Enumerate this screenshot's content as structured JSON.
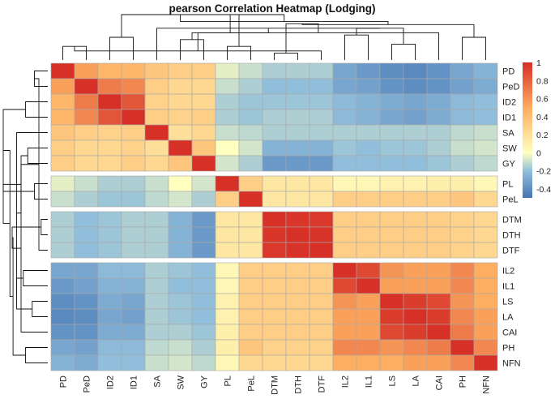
{
  "chart_data": {
    "type": "heatmap",
    "title": "pearson Correlation Heatmap (Lodging)",
    "xlabel": "",
    "ylabel": "",
    "labels": [
      "PD",
      "PeD",
      "ID2",
      "ID1",
      "SA",
      "SW",
      "GY",
      "PL",
      "PeL",
      "DTM",
      "DTH",
      "DTF",
      "IL2",
      "IL1",
      "LS",
      "LA",
      "CAI",
      "PH",
      "NFN"
    ],
    "groups": [
      [
        0,
        6
      ],
      [
        7,
        8
      ],
      [
        9,
        11
      ],
      [
        12,
        18
      ]
    ],
    "colorbar": {
      "range": [
        -0.5,
        1
      ],
      "ticks": [
        "1",
        "0.8",
        "0.6",
        "0.4",
        "0.2",
        "0",
        "-0.2",
        "-0.4"
      ],
      "tick_values": [
        1,
        0.8,
        0.6,
        0.4,
        0.2,
        0,
        -0.2,
        -0.4
      ]
    },
    "colors": {
      "low": "#4575b4",
      "mid": "#ffffbf",
      "high": "#d73027"
    },
    "values": [
      [
        1.0,
        0.55,
        0.45,
        0.45,
        0.35,
        0.3,
        0.3,
        -0.05,
        -0.1,
        -0.15,
        -0.15,
        -0.15,
        -0.3,
        -0.35,
        -0.4,
        -0.42,
        -0.38,
        -0.3,
        -0.25
      ],
      [
        0.55,
        1.0,
        0.7,
        0.65,
        0.3,
        0.25,
        0.25,
        -0.1,
        -0.15,
        -0.2,
        -0.2,
        -0.2,
        -0.3,
        -0.32,
        -0.38,
        -0.4,
        -0.38,
        -0.32,
        -0.28
      ],
      [
        0.45,
        0.7,
        1.0,
        0.85,
        0.28,
        0.25,
        0.25,
        -0.15,
        -0.18,
        -0.18,
        -0.18,
        -0.18,
        -0.22,
        -0.25,
        -0.28,
        -0.3,
        -0.28,
        -0.22,
        -0.2
      ],
      [
        0.45,
        0.65,
        0.85,
        1.0,
        0.3,
        0.28,
        0.3,
        -0.15,
        -0.18,
        -0.15,
        -0.15,
        -0.15,
        -0.22,
        -0.25,
        -0.3,
        -0.32,
        -0.28,
        -0.22,
        -0.2
      ],
      [
        0.35,
        0.3,
        0.28,
        0.3,
        1.0,
        0.2,
        0.25,
        -0.1,
        -0.12,
        -0.15,
        -0.15,
        -0.15,
        -0.15,
        -0.15,
        -0.15,
        -0.15,
        -0.15,
        -0.12,
        -0.1
      ],
      [
        0.3,
        0.25,
        0.25,
        0.28,
        0.2,
        1.0,
        0.35,
        0.0,
        -0.08,
        -0.25,
        -0.25,
        -0.25,
        -0.18,
        -0.2,
        -0.18,
        -0.18,
        -0.15,
        -0.1,
        -0.08
      ],
      [
        0.3,
        0.25,
        0.25,
        0.3,
        0.25,
        0.35,
        1.0,
        -0.08,
        -0.15,
        -0.35,
        -0.35,
        -0.35,
        -0.2,
        -0.2,
        -0.2,
        -0.2,
        -0.18,
        -0.15,
        -0.12
      ],
      [
        -0.05,
        -0.1,
        -0.15,
        -0.15,
        -0.1,
        0.0,
        -0.08,
        1.0,
        0.3,
        0.15,
        0.15,
        0.15,
        0.05,
        0.05,
        0.08,
        0.08,
        0.1,
        0.1,
        0.05
      ],
      [
        -0.1,
        -0.15,
        -0.18,
        -0.18,
        -0.12,
        -0.08,
        -0.15,
        0.3,
        1.0,
        0.15,
        0.15,
        0.15,
        0.3,
        0.3,
        0.3,
        0.3,
        0.3,
        0.35,
        0.25
      ],
      [
        -0.15,
        -0.2,
        -0.18,
        -0.15,
        -0.15,
        -0.25,
        -0.35,
        0.15,
        0.15,
        1.0,
        0.98,
        0.97,
        0.3,
        0.3,
        0.3,
        0.3,
        0.3,
        0.28,
        0.25
      ],
      [
        -0.15,
        -0.2,
        -0.18,
        -0.15,
        -0.15,
        -0.25,
        -0.35,
        0.15,
        0.15,
        0.98,
        1.0,
        0.99,
        0.3,
        0.3,
        0.3,
        0.3,
        0.3,
        0.28,
        0.25
      ],
      [
        -0.15,
        -0.2,
        -0.18,
        -0.15,
        -0.15,
        -0.25,
        -0.35,
        0.15,
        0.15,
        0.97,
        0.99,
        1.0,
        0.3,
        0.3,
        0.3,
        0.3,
        0.3,
        0.28,
        0.25
      ],
      [
        -0.3,
        -0.3,
        -0.22,
        -0.22,
        -0.15,
        -0.18,
        -0.2,
        0.05,
        0.3,
        0.3,
        0.3,
        0.3,
        1.0,
        0.9,
        0.6,
        0.55,
        0.55,
        0.65,
        0.5
      ],
      [
        -0.35,
        -0.32,
        -0.25,
        -0.25,
        -0.15,
        -0.2,
        -0.2,
        0.05,
        0.3,
        0.3,
        0.3,
        0.3,
        0.9,
        1.0,
        0.55,
        0.55,
        0.55,
        0.65,
        0.5
      ],
      [
        -0.4,
        -0.38,
        -0.28,
        -0.3,
        -0.15,
        -0.18,
        -0.2,
        0.08,
        0.3,
        0.3,
        0.3,
        0.3,
        0.6,
        0.55,
        1.0,
        0.95,
        0.9,
        0.6,
        0.5
      ],
      [
        -0.42,
        -0.4,
        -0.3,
        -0.32,
        -0.15,
        -0.18,
        -0.2,
        0.08,
        0.3,
        0.3,
        0.3,
        0.3,
        0.55,
        0.55,
        0.95,
        1.0,
        0.95,
        0.65,
        0.55
      ],
      [
        -0.38,
        -0.38,
        -0.28,
        -0.28,
        -0.15,
        -0.15,
        -0.18,
        0.1,
        0.3,
        0.3,
        0.3,
        0.3,
        0.55,
        0.55,
        0.9,
        0.95,
        1.0,
        0.7,
        0.55
      ],
      [
        -0.3,
        -0.32,
        -0.22,
        -0.22,
        -0.12,
        -0.1,
        -0.15,
        0.1,
        0.35,
        0.28,
        0.28,
        0.28,
        0.65,
        0.65,
        0.6,
        0.65,
        0.7,
        1.0,
        0.65
      ],
      [
        -0.25,
        -0.28,
        -0.2,
        -0.2,
        -0.1,
        -0.08,
        -0.12,
        0.05,
        0.25,
        0.25,
        0.25,
        0.25,
        0.5,
        0.5,
        0.5,
        0.55,
        0.55,
        0.65,
        1.0
      ]
    ],
    "dendrogram": [
      [
        0,
        1,
        0.3
      ],
      [
        7,
        8,
        0.3
      ],
      [
        9,
        10,
        0.15
      ],
      [
        11,
        19,
        0.2
      ],
      [
        12,
        13,
        0.55
      ],
      [
        14,
        15,
        0.35
      ],
      [
        16,
        22,
        0.6
      ],
      [
        17,
        18,
        0.5
      ],
      [
        23,
        24,
        0.7
      ],
      [
        21,
        25,
        0.8
      ],
      [
        2,
        3,
        0.5
      ],
      [
        5,
        6,
        0.45
      ],
      [
        4,
        27,
        0.7
      ],
      [
        26,
        28,
        0.78
      ],
      [
        20,
        29,
        1.0
      ],
      [
        30,
        31,
        0.6
      ],
      [
        32,
        33,
        0.85
      ],
      [
        34,
        35,
        1.0
      ]
    ]
  }
}
